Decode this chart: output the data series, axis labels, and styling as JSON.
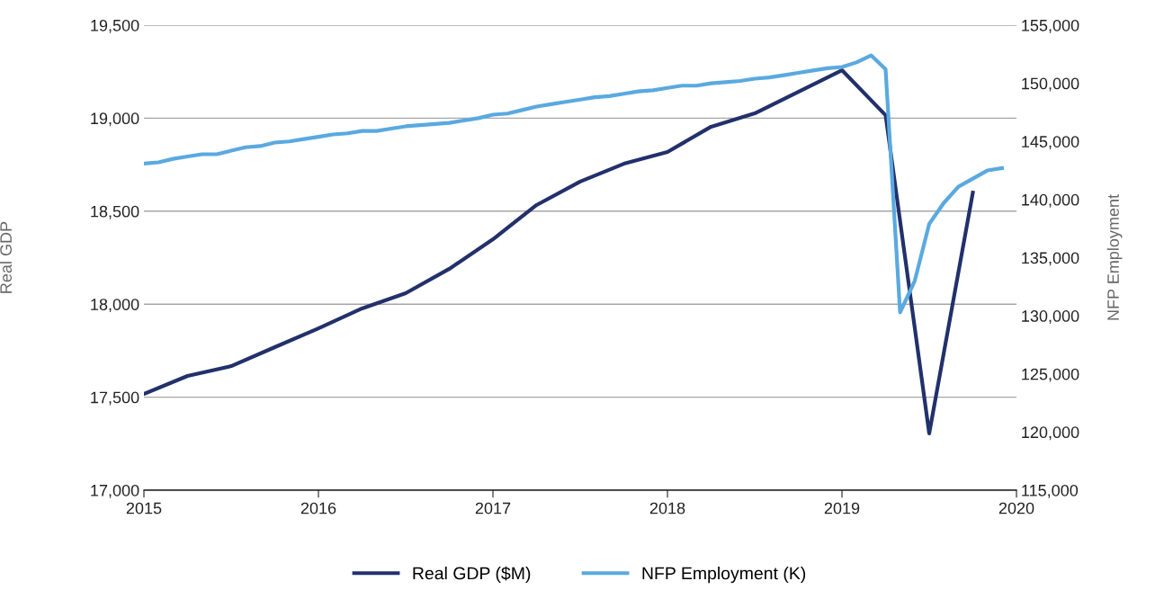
{
  "chart_data": {
    "type": "line",
    "ylabel": "Real GDP",
    "y2label": "NFP Employment",
    "xlim": [
      2015,
      2020
    ],
    "xticks": [
      2015,
      2016,
      2017,
      2018,
      2019,
      2020
    ],
    "ylim": [
      17000,
      19500
    ],
    "yticks": [
      {
        "value": 17000,
        "label": "17,000"
      },
      {
        "value": 17500,
        "label": "17,500"
      },
      {
        "value": 18000,
        "label": "18,000"
      },
      {
        "value": 18500,
        "label": "18,500"
      },
      {
        "value": 19000,
        "label": "19,000"
      },
      {
        "value": 19500,
        "label": "19,500"
      }
    ],
    "y2lim": [
      115000,
      155000
    ],
    "y2ticks": [
      {
        "value": 115000,
        "label": "115,000"
      },
      {
        "value": 120000,
        "label": "120,000"
      },
      {
        "value": 125000,
        "label": "125,000"
      },
      {
        "value": 130000,
        "label": "130,000"
      },
      {
        "value": 135000,
        "label": "135,000"
      },
      {
        "value": 140000,
        "label": "140,000"
      },
      {
        "value": 145000,
        "label": "145,000"
      },
      {
        "value": 150000,
        "label": "150,000"
      },
      {
        "value": 155000,
        "label": "155,000"
      }
    ],
    "grid": "y",
    "legend": "bottom",
    "line_style": "solid",
    "marker": "none",
    "series": [
      {
        "name": "Real GDP ($M)",
        "color": "#22306b",
        "x": [
          2015,
          2015.25,
          2015.5,
          2015.75,
          2016,
          2016.25,
          2016.5,
          2016.75,
          2017,
          2017.25,
          2017.5,
          2017.75,
          2018,
          2018.25,
          2018.5,
          2018.75,
          2019,
          2019.25,
          2019.5,
          2019.75
        ],
        "values": [
          17517,
          17614,
          17667,
          17769,
          17870,
          17977,
          18059,
          18190,
          18349,
          18533,
          18659,
          18755,
          18818,
          18954,
          19026,
          19142,
          19258,
          19016,
          17305,
          18600
        ]
      },
      {
        "name": "NFP Employment (K)",
        "color": "#5aa9e0",
        "axis": "y2",
        "x": [
          2015,
          2015.083,
          2015.167,
          2015.25,
          2015.333,
          2015.417,
          2015.5,
          2015.583,
          2015.667,
          2015.75,
          2015.833,
          2015.917,
          2016,
          2016.083,
          2016.167,
          2016.25,
          2016.333,
          2016.417,
          2016.5,
          2016.583,
          2016.667,
          2016.75,
          2016.833,
          2016.917,
          2017,
          2017.083,
          2017.167,
          2017.25,
          2017.333,
          2017.417,
          2017.5,
          2017.583,
          2017.667,
          2017.75,
          2017.833,
          2017.917,
          2018,
          2018.083,
          2018.167,
          2018.25,
          2018.333,
          2018.417,
          2018.5,
          2018.583,
          2018.667,
          2018.75,
          2018.833,
          2018.917,
          2019,
          2019.083,
          2019.167,
          2019.25,
          2019.333,
          2019.417,
          2019.5,
          2019.583,
          2019.667,
          2019.75,
          2019.833,
          2019.917
        ],
        "values": [
          143100,
          143200,
          143500,
          143700,
          143900,
          143900,
          144200,
          144500,
          144600,
          144900,
          145000,
          145200,
          145400,
          145600,
          145700,
          145900,
          145900,
          146100,
          146300,
          146400,
          146500,
          146600,
          146800,
          147000,
          147300,
          147400,
          147700,
          148000,
          148200,
          148400,
          148600,
          148800,
          148900,
          149100,
          149300,
          149400,
          149600,
          149800,
          149800,
          150000,
          150100,
          150200,
          150400,
          150500,
          150700,
          150900,
          151100,
          151300,
          151400,
          151800,
          152400,
          151200,
          130300,
          133000,
          137900,
          139700,
          141100,
          141800,
          142500,
          142700
        ]
      }
    ]
  }
}
